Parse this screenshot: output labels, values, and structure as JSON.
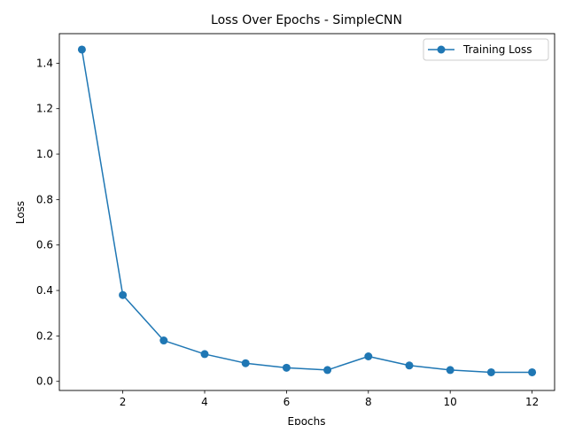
{
  "chart_data": {
    "type": "line",
    "title": "Loss Over Epochs - SimpleCNN",
    "xlabel": "Epochs",
    "ylabel": "Loss",
    "x": [
      1,
      2,
      3,
      4,
      5,
      6,
      7,
      8,
      9,
      10,
      11,
      12
    ],
    "series": [
      {
        "name": "Training Loss",
        "color": "#1f77b4",
        "marker": "circle",
        "values": [
          1.46,
          0.38,
          0.18,
          0.12,
          0.08,
          0.06,
          0.05,
          0.11,
          0.07,
          0.05,
          0.04,
          0.04
        ]
      }
    ],
    "xlim": [
      0.45,
      12.55
    ],
    "ylim": [
      -0.04,
      1.53
    ],
    "xticks": [
      2,
      4,
      6,
      8,
      10,
      12
    ],
    "xtick_labels": [
      "2",
      "4",
      "6",
      "8",
      "10",
      "12"
    ],
    "yticks": [
      0.0,
      0.2,
      0.4,
      0.6,
      0.8,
      1.0,
      1.2,
      1.4
    ],
    "ytick_labels": [
      "0.0",
      "0.2",
      "0.4",
      "0.6",
      "0.8",
      "1.0",
      "1.2",
      "1.4"
    ],
    "grid": false,
    "legend_position": "top-right"
  }
}
